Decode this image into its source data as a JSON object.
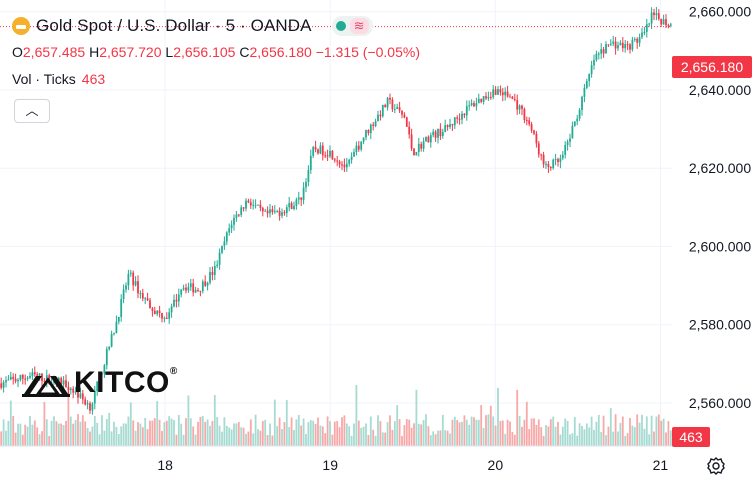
{
  "header": {
    "title": "Gold Spot / U.S. Dollar · 5 · OANDA",
    "ohlc": {
      "o_label": "O",
      "o": "2,657.485",
      "h_label": "H",
      "h": "2,657.720",
      "l_label": "L",
      "l": "2,656.105",
      "c_label": "C",
      "c": "2,656.180",
      "change": "−1.315 (−0.05%)"
    },
    "volume_label": "Vol · Ticks",
    "volume_value": "463",
    "collapse_icon": "chevron-up-icon"
  },
  "watermark": {
    "text": "KITCO",
    "registered": "®"
  },
  "price_badge": "2,656.180",
  "volume_badge": "463",
  "colors": {
    "up": "#22ab94",
    "down": "#f23645",
    "grid": "#f0f3fa",
    "axis_text": "#131722",
    "volume_up": "#a5dbd1",
    "volume_down": "#f7a9a7"
  },
  "chart_data": {
    "type": "candlestick",
    "symbol": "Gold Spot / U.S. Dollar",
    "interval": "5",
    "source": "OANDA",
    "y_axis": {
      "ticks": [
        2560,
        2580,
        2600,
        2620,
        2640,
        2660
      ],
      "tick_labels": [
        "2,560.000",
        "2,580.000",
        "2,600.000",
        "2,620.000",
        "2,640.000",
        "2,660.000"
      ],
      "range": [
        2549,
        2663
      ]
    },
    "x_axis": {
      "ticks": [
        1,
        2,
        3,
        4
      ],
      "tick_labels": [
        "18",
        "19",
        "20",
        "21"
      ],
      "range": [
        0.0,
        4.07
      ]
    },
    "price_path": [
      [
        0.0,
        2565
      ],
      [
        0.2,
        2567
      ],
      [
        0.4,
        2565
      ],
      [
        0.55,
        2559
      ],
      [
        0.6,
        2566
      ],
      [
        0.7,
        2580
      ],
      [
        0.78,
        2593
      ],
      [
        0.85,
        2588
      ],
      [
        0.95,
        2583
      ],
      [
        1.02,
        2582
      ],
      [
        1.1,
        2590
      ],
      [
        1.2,
        2589
      ],
      [
        1.3,
        2594
      ],
      [
        1.4,
        2606
      ],
      [
        1.5,
        2612
      ],
      [
        1.6,
        2608
      ],
      [
        1.7,
        2609
      ],
      [
        1.82,
        2612
      ],
      [
        1.9,
        2625
      ],
      [
        2.0,
        2624
      ],
      [
        2.1,
        2620
      ],
      [
        2.2,
        2628
      ],
      [
        2.35,
        2637
      ],
      [
        2.45,
        2633
      ],
      [
        2.5,
        2624
      ],
      [
        2.6,
        2628
      ],
      [
        2.7,
        2630
      ],
      [
        2.85,
        2636
      ],
      [
        3.0,
        2640
      ],
      [
        3.1,
        2638
      ],
      [
        3.2,
        2632
      ],
      [
        3.3,
        2620
      ],
      [
        3.4,
        2622
      ],
      [
        3.5,
        2634
      ],
      [
        3.6,
        2648
      ],
      [
        3.7,
        2652
      ],
      [
        3.8,
        2651
      ],
      [
        3.9,
        2654
      ],
      [
        3.95,
        2659
      ],
      [
        4.05,
        2657
      ],
      [
        4.07,
        2656.18
      ]
    ],
    "volume_series_name": "Vol · Ticks",
    "last_volume": 463,
    "last_close": 2656.18,
    "last_ohlc": {
      "open": 2657.485,
      "high": 2657.72,
      "low": 2656.105,
      "close": 2656.18,
      "change": -1.315,
      "change_pct": -0.05
    }
  }
}
